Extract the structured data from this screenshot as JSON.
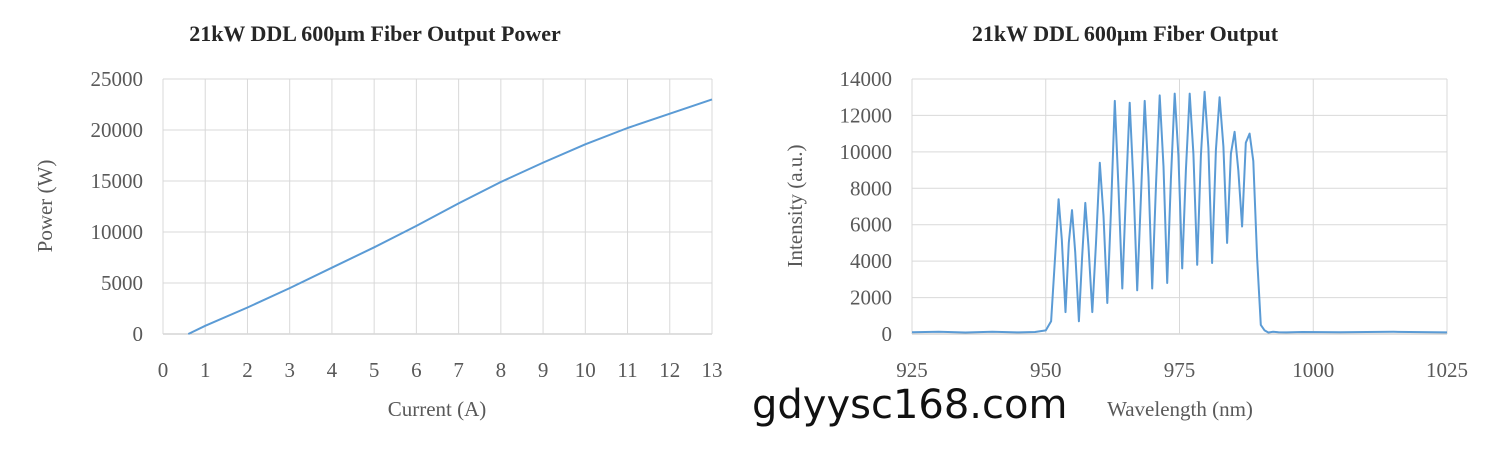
{
  "chart_data": [
    {
      "type": "line",
      "title": "21kW DDL 600μm Fiber Output Power",
      "xlabel": "Current (A)",
      "ylabel": "Power (W)",
      "xlim": [
        0,
        13
      ],
      "ylim": [
        0,
        25000
      ],
      "xticks": [
        0,
        1,
        2,
        3,
        4,
        5,
        6,
        7,
        8,
        9,
        10,
        11,
        12,
        13
      ],
      "yticks": [
        0,
        5000,
        10000,
        15000,
        20000,
        25000
      ],
      "grid": true,
      "series": [
        {
          "color": "#5b9bd5",
          "x": [
            0.6,
            1,
            2,
            3,
            4,
            5,
            6,
            7,
            8,
            9,
            10,
            11,
            12,
            13
          ],
          "y": [
            0,
            800,
            2600,
            4500,
            6500,
            8500,
            10600,
            12800,
            14900,
            16800,
            18600,
            20200,
            21600,
            23000
          ]
        }
      ]
    },
    {
      "type": "line",
      "title": "21kW DDL 600μm Fiber Output",
      "xlabel": "Wavelength (nm)",
      "ylabel": "Intensity (a.u.)",
      "xlim": [
        925,
        1025
      ],
      "ylim": [
        0,
        14000
      ],
      "xticks": [
        925,
        950,
        975,
        1000,
        1025
      ],
      "yticks": [
        0,
        2000,
        4000,
        6000,
        8000,
        10000,
        12000,
        14000
      ],
      "grid": true,
      "series": [
        {
          "color": "#5b9bd5",
          "x": [
            925,
            930,
            935,
            940,
            945,
            948,
            950,
            951,
            951.8,
            952.4,
            953,
            953.7,
            954.3,
            954.9,
            955.5,
            956.2,
            956.8,
            957.4,
            958,
            958.7,
            959.4,
            960.1,
            960.8,
            961.5,
            962.2,
            962.9,
            963.6,
            964.3,
            965,
            965.7,
            966.4,
            967.1,
            967.8,
            968.5,
            969.2,
            969.9,
            970.6,
            971.3,
            972,
            972.7,
            973.4,
            974.1,
            974.8,
            975.5,
            976.2,
            976.9,
            977.6,
            978.3,
            979,
            979.7,
            980.4,
            981.1,
            981.8,
            982.5,
            983.2,
            983.9,
            984.6,
            985.3,
            986,
            986.7,
            987.4,
            988.1,
            988.8,
            989.5,
            990.2,
            990.9,
            991.6,
            992.5,
            993.5,
            995,
            998,
            1005,
            1015,
            1025
          ],
          "y": [
            100,
            120,
            80,
            120,
            90,
            110,
            200,
            700,
            4500,
            7400,
            5200,
            1200,
            5000,
            6800,
            4500,
            700,
            4200,
            7200,
            4800,
            1200,
            5000,
            9400,
            6500,
            1700,
            6800,
            12800,
            8000,
            2500,
            7800,
            12700,
            8200,
            2400,
            7600,
            12800,
            8600,
            2500,
            8200,
            13100,
            9200,
            2800,
            8500,
            13200,
            9800,
            3600,
            9000,
            13200,
            9900,
            3800,
            9800,
            13300,
            10200,
            3900,
            10100,
            13000,
            10300,
            5000,
            9900,
            11100,
            9000,
            5900,
            10500,
            11000,
            9500,
            4200,
            500,
            200,
            80,
            120,
            100,
            90,
            110,
            100,
            120,
            90
          ]
        }
      ]
    }
  ],
  "watermark": "gdyysc168.com"
}
